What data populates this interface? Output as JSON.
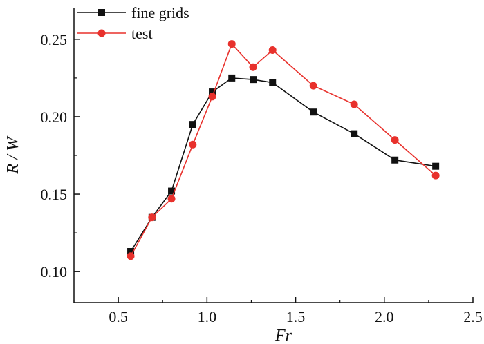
{
  "chart_data": {
    "type": "line",
    "xlabel": "Fr",
    "ylabel": "R / W",
    "xlim": [
      0.25,
      2.5
    ],
    "ylim": [
      0.08,
      0.27
    ],
    "xticks": [
      0.5,
      1.0,
      1.5,
      2.0,
      2.5
    ],
    "xtick_labels": [
      "0.5",
      "1.0",
      "1.5",
      "2.0",
      "2.5"
    ],
    "yticks": [
      0.1,
      0.15,
      0.2,
      0.25
    ],
    "ytick_labels": [
      "0.10",
      "0.15",
      "0.20",
      "0.25"
    ],
    "grid": false,
    "legend_position": "top-left",
    "series": [
      {
        "name": "fine grids",
        "color": "#111111",
        "marker": "square",
        "x": [
          0.57,
          0.69,
          0.8,
          0.92,
          1.03,
          1.14,
          1.26,
          1.37,
          1.6,
          1.83,
          2.06,
          2.29
        ],
        "y": [
          0.113,
          0.135,
          0.152,
          0.195,
          0.216,
          0.225,
          0.224,
          0.222,
          0.203,
          0.189,
          0.172,
          0.168
        ]
      },
      {
        "name": "test",
        "color": "#e8312c",
        "marker": "circle",
        "x": [
          0.57,
          0.69,
          0.8,
          0.92,
          1.03,
          1.14,
          1.26,
          1.37,
          1.6,
          1.83,
          2.06,
          2.29
        ],
        "y": [
          0.11,
          0.135,
          0.147,
          0.182,
          0.213,
          0.247,
          0.232,
          0.243,
          0.22,
          0.208,
          0.185,
          0.162
        ]
      }
    ]
  }
}
